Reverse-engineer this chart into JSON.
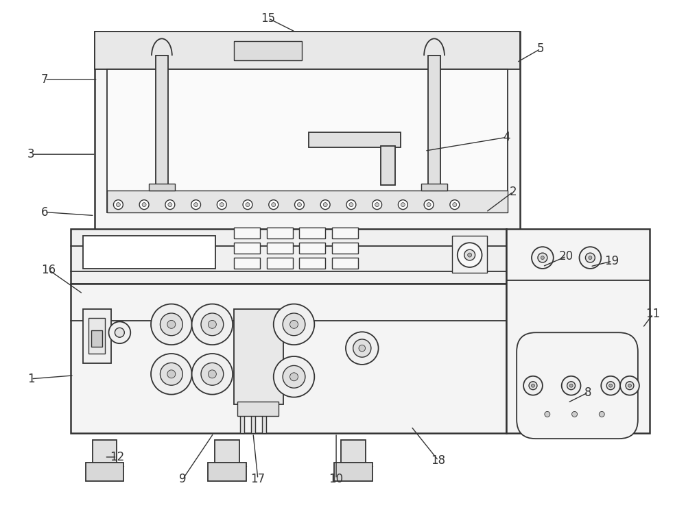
{
  "bg_color": "#ffffff",
  "line_color": "#333333",
  "figsize": [
    10.0,
    7.69
  ],
  "label_fontsize": 12
}
